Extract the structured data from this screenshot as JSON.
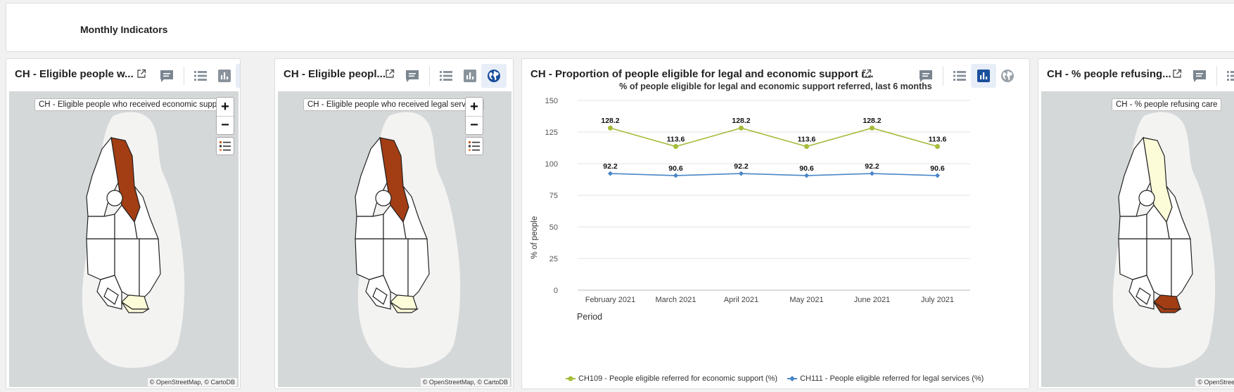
{
  "header": {
    "title": "Monthly Indicators"
  },
  "cards": [
    {
      "title": "CH - Eligible people w...",
      "map_tooltip": "CH - Eligible people who received economic support",
      "attribution": "© OpenStreetMap, © CartoDB",
      "zoom_in": "+",
      "zoom_out": "−",
      "active_view": "map"
    },
    {
      "title": "CH - Eligible peopl...",
      "map_tooltip": "CH - Eligible people who received legal services",
      "attribution": "© OpenStreetMap, © CartoDB",
      "zoom_in": "+",
      "zoom_out": "−",
      "active_view": "map"
    },
    {
      "title": "CH - Proportion of people eligible for legal and economic support r...",
      "active_view": "chart"
    },
    {
      "title": "CH - % people refusing...",
      "map_tooltip": "CH - % people refusing care",
      "attribution": "© OpenStreetM",
      "active_view": "map"
    }
  ],
  "chart_data": {
    "type": "line",
    "title": "% of people eligible for legal and economic support referred, last 6 months",
    "xlabel": "Period",
    "ylabel": "% of people",
    "ylim": [
      0,
      150
    ],
    "yticks": [
      0,
      25,
      50,
      75,
      100,
      125,
      150
    ],
    "grid": true,
    "legend_position": "bottom",
    "categories": [
      "February 2021",
      "March 2021",
      "April 2021",
      "May 2021",
      "June 2021",
      "July 2021"
    ],
    "series": [
      {
        "name": "CH109 - People eligible referred for economic support (%)",
        "values": [
          128.2,
          113.6,
          128.2,
          113.6,
          128.2,
          113.6
        ],
        "color": "#a5bd3b",
        "marker": "circle"
      },
      {
        "name": "CH111 - People eligible referred for legal services (%)",
        "values": [
          92.2,
          90.6,
          92.2,
          90.6,
          92.2,
          90.6
        ],
        "color": "#4a86c6",
        "marker": "diamond"
      }
    ]
  },
  "colors": {
    "accent": "#1a4f9c",
    "choropleth_high": "#a33d14",
    "choropleth_low": "#fdfcd9"
  },
  "icons": [
    "external-link-icon",
    "comment-icon",
    "table-view-icon",
    "chart-view-icon",
    "map-view-icon",
    "legend-icon"
  ]
}
